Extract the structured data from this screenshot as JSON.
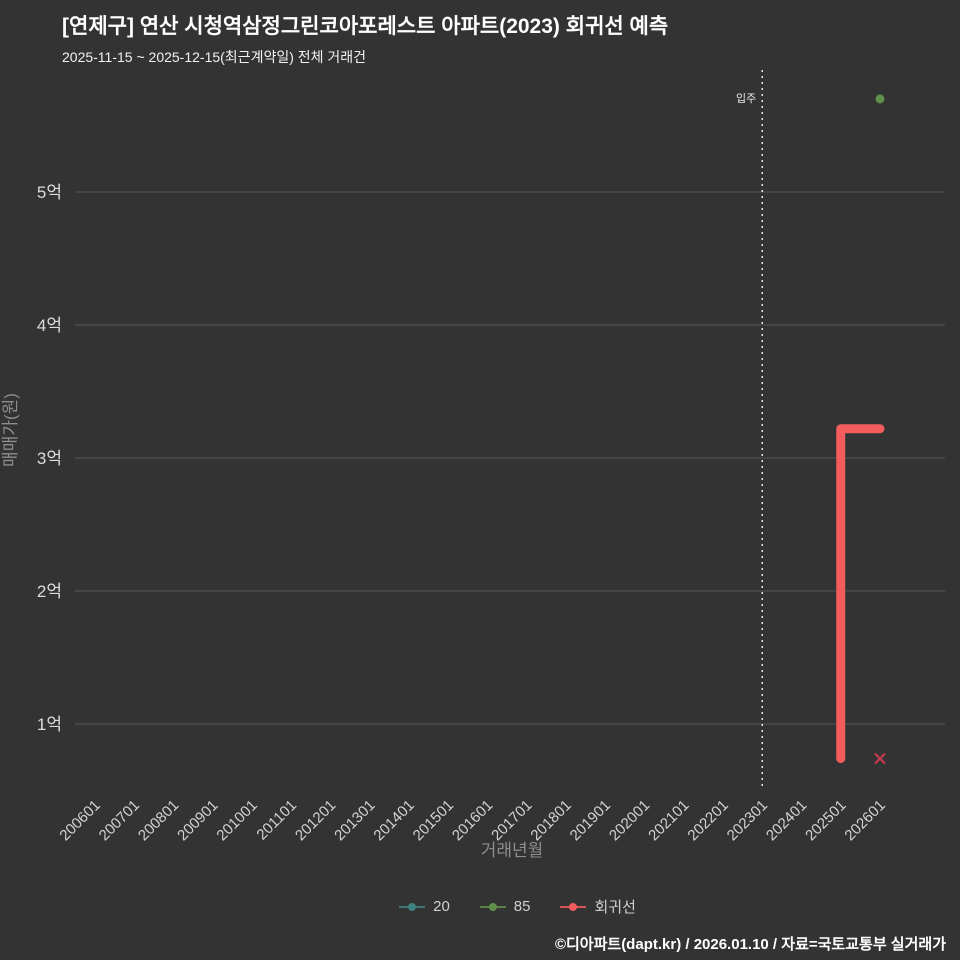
{
  "header": {
    "title": "[연제구] 연산 시청역삼정그린코아포레스트 아파트(2023) 회귀선 예측",
    "subtitle": "2025-11-15 ~ 2025-12-15(최근계약일) 전체 거래건"
  },
  "footer": {
    "credit": "©디아파트(dapt.kr) / 2026.01.10 / 자료=국토교통부 실거래가"
  },
  "legend": {
    "items": [
      {
        "label": "20",
        "color": "#3f8080"
      },
      {
        "label": "85",
        "color": "#5f8f4a"
      },
      {
        "label": "회귀선",
        "color": "#f25c5c"
      }
    ]
  },
  "chart_data": {
    "type": "line",
    "title": "[연제구] 연산 시청역삼정그린코아포레스트 아파트(2023) 회귀선 예측",
    "subtitle": "2025-11-15 ~ 2025-12-15(최근계약일) 전체 거래건",
    "xlabel": "거래년월",
    "ylabel": "매매가(원)",
    "x_ticks": [
      "200601",
      "200701",
      "200801",
      "200901",
      "201001",
      "201101",
      "201201",
      "201301",
      "201401",
      "201501",
      "201601",
      "201701",
      "201801",
      "201901",
      "202001",
      "202101",
      "202201",
      "202301",
      "202401",
      "202501",
      "202601"
    ],
    "y_ticks": [
      {
        "label": "1억",
        "value": 1
      },
      {
        "label": "2억",
        "value": 2
      },
      {
        "label": "3억",
        "value": 3
      },
      {
        "label": "4억",
        "value": 4
      },
      {
        "label": "5억",
        "value": 5
      }
    ],
    "y_unit": "억(원)",
    "ylim_eok": [
      0.5,
      5.95
    ],
    "grid": true,
    "legend_position": "bottom",
    "annotation": {
      "label": "입주",
      "x": "202301",
      "style": "dotted-vline",
      "color": "#e8e8e8"
    },
    "colors": {
      "background": "#333333",
      "grid": "#575757",
      "tick_label": "#d8d8d8",
      "axis_label": "#8e8e8e"
    },
    "series": [
      {
        "name": "20",
        "color": "#3f8080",
        "line": [],
        "points": []
      },
      {
        "name": "85",
        "color": "#5f8f4a",
        "line": [],
        "points": [
          {
            "x": "202601",
            "y_eok": 5.7,
            "shape": "circle"
          }
        ]
      },
      {
        "name": "회귀선",
        "color": "#f25c5c",
        "width": 9,
        "line": [
          {
            "x": "202501",
            "y_eok": 0.74
          },
          {
            "x": "202501",
            "y_eok": 3.22
          },
          {
            "x": "202601",
            "y_eok": 3.22
          }
        ],
        "points": [
          {
            "x": "202601",
            "y_eok": 0.74,
            "shape": "x",
            "color": "#bf3a4a"
          }
        ]
      }
    ]
  }
}
